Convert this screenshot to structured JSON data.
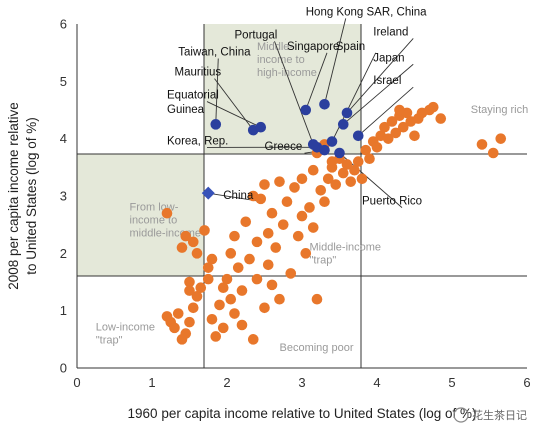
{
  "chart_data": {
    "type": "scatter",
    "xlabel": "1960 per capita income relative to United States (log of %)",
    "ylabel": "2008 per capita income relative to United States (log of %)",
    "xlim": [
      0,
      6
    ],
    "ylim": [
      0,
      6
    ],
    "x_ticks": [
      "0",
      "1",
      "2",
      "3",
      "4",
      "5",
      "6"
    ],
    "y_ticks": [
      "0",
      "1",
      "2",
      "3",
      "4",
      "5",
      "6"
    ],
    "grid": false,
    "thresholds": {
      "x": [
        1.65,
        3.75
      ],
      "y": [
        1.65,
        3.75
      ]
    },
    "zones": [
      {
        "text": [
          "Middle-",
          "income to",
          "high-income"
        ],
        "x": 2.4,
        "y": 5.55
      },
      {
        "text": [
          "From low-",
          "income to",
          "middle-income"
        ],
        "x": 0.7,
        "y": 2.75
      },
      {
        "text": [
          "Middle-income",
          "\"trap\""
        ],
        "x": 3.1,
        "y": 2.05
      },
      {
        "text": [
          "Staying rich"
        ],
        "x": 5.25,
        "y": 4.45
      },
      {
        "text": [
          "Low-income",
          "\"trap\""
        ],
        "x": 0.25,
        "y": 0.65
      },
      {
        "text": [
          "Becoming poor"
        ],
        "x": 2.7,
        "y": 0.3
      }
    ],
    "highlighted": [
      {
        "name": "Taiwan, China",
        "x": 1.85,
        "y": 4.25,
        "label_x": 1.35,
        "label_y": 5.45
      },
      {
        "name": "Mauritius",
        "x": 2.35,
        "y": 4.15,
        "label_x": 1.3,
        "label_y": 5.1
      },
      {
        "name": "Equatorial",
        "x": 2.45,
        "y": 4.2,
        "label_x": 1.2,
        "label_y": 4.7
      },
      {
        "name": "Guinea",
        "x": null,
        "y": null,
        "label_x": 1.2,
        "label_y": 4.45
      },
      {
        "name": "Korea, Rep.",
        "x": 3.2,
        "y": 3.85,
        "label_x": 1.2,
        "label_y": 3.9
      },
      {
        "name": "Portugal",
        "x": 3.15,
        "y": 3.9,
        "label_x": 2.1,
        "label_y": 5.75
      },
      {
        "name": "Singapore",
        "x": 3.05,
        "y": 4.5,
        "label_x": 2.8,
        "label_y": 5.55
      },
      {
        "name": "Hong Kong SAR, China",
        "x": 3.3,
        "y": 4.6,
        "label_x": 3.05,
        "label_y": 6.15
      },
      {
        "name": "Spain",
        "x": 3.4,
        "y": 3.95,
        "label_x": 3.45,
        "label_y": 5.55
      },
      {
        "name": "Ireland",
        "x": 3.6,
        "y": 4.45,
        "label_x": 3.95,
        "label_y": 5.8
      },
      {
        "name": "Japan",
        "x": 3.55,
        "y": 4.25,
        "label_x": 3.95,
        "label_y": 5.35
      },
      {
        "name": "Israel",
        "x": 3.75,
        "y": 4.05,
        "label_x": 3.95,
        "label_y": 4.95
      },
      {
        "name": "Greece",
        "x": 3.3,
        "y": 3.8,
        "label_x": 2.5,
        "label_y": 3.8
      },
      {
        "name": "Puerto Rico",
        "x": 3.5,
        "y": 3.75,
        "label_x": 3.8,
        "label_y": 2.85
      },
      {
        "name": "China",
        "x": 1.75,
        "y": 3.05,
        "label_x": 1.95,
        "label_y": 2.95
      }
    ],
    "others": [
      [
        1.2,
        2.7
      ],
      [
        1.2,
        0.9
      ],
      [
        1.25,
        0.8
      ],
      [
        1.3,
        0.7
      ],
      [
        1.35,
        0.95
      ],
      [
        1.4,
        0.5
      ],
      [
        1.45,
        0.6
      ],
      [
        1.5,
        0.8
      ],
      [
        1.55,
        1.05
      ],
      [
        1.6,
        1.25
      ],
      [
        1.5,
        1.5
      ],
      [
        1.65,
        1.4
      ],
      [
        1.4,
        2.1
      ],
      [
        1.45,
        2.3
      ],
      [
        1.5,
        1.35
      ],
      [
        1.55,
        2.2
      ],
      [
        1.6,
        2.0
      ],
      [
        1.7,
        2.4
      ],
      [
        1.75,
        1.75
      ],
      [
        1.75,
        1.55
      ],
      [
        1.8,
        1.9
      ],
      [
        1.8,
        0.85
      ],
      [
        1.85,
        0.55
      ],
      [
        1.9,
        1.1
      ],
      [
        1.95,
        1.4
      ],
      [
        1.95,
        0.7
      ],
      [
        2.0,
        1.55
      ],
      [
        2.05,
        2.0
      ],
      [
        2.05,
        1.2
      ],
      [
        2.1,
        0.95
      ],
      [
        2.1,
        2.3
      ],
      [
        2.15,
        1.75
      ],
      [
        2.2,
        1.35
      ],
      [
        2.2,
        0.75
      ],
      [
        2.25,
        2.55
      ],
      [
        2.3,
        1.9
      ],
      [
        2.35,
        3.0
      ],
      [
        2.35,
        0.5
      ],
      [
        2.4,
        2.2
      ],
      [
        2.4,
        1.55
      ],
      [
        2.45,
        2.95
      ],
      [
        2.5,
        3.2
      ],
      [
        2.5,
        1.05
      ],
      [
        2.55,
        2.35
      ],
      [
        2.55,
        1.8
      ],
      [
        2.6,
        1.45
      ],
      [
        2.6,
        2.7
      ],
      [
        2.65,
        2.1
      ],
      [
        2.7,
        3.25
      ],
      [
        2.7,
        1.2
      ],
      [
        2.75,
        2.5
      ],
      [
        2.8,
        2.9
      ],
      [
        2.85,
        1.65
      ],
      [
        2.9,
        3.15
      ],
      [
        2.95,
        2.3
      ],
      [
        3.0,
        2.65
      ],
      [
        3.0,
        3.3
      ],
      [
        3.05,
        2.0
      ],
      [
        3.1,
        2.8
      ],
      [
        3.15,
        3.45
      ],
      [
        3.15,
        2.45
      ],
      [
        3.2,
        1.2
      ],
      [
        3.25,
        3.1
      ],
      [
        3.3,
        2.9
      ],
      [
        3.35,
        3.3
      ],
      [
        3.4,
        3.5
      ],
      [
        3.45,
        3.2
      ],
      [
        3.5,
        3.65
      ],
      [
        3.55,
        3.4
      ],
      [
        3.6,
        3.55
      ],
      [
        3.65,
        3.25
      ],
      [
        3.7,
        3.45
      ],
      [
        3.75,
        3.6
      ],
      [
        3.8,
        3.3
      ],
      [
        3.85,
        3.8
      ],
      [
        3.9,
        3.65
      ],
      [
        3.95,
        3.95
      ],
      [
        4.0,
        3.85
      ],
      [
        4.05,
        4.05
      ],
      [
        4.1,
        4.2
      ],
      [
        4.15,
        4.0
      ],
      [
        4.2,
        4.3
      ],
      [
        4.25,
        4.1
      ],
      [
        4.3,
        4.4
      ],
      [
        4.35,
        4.2
      ],
      [
        4.4,
        4.45
      ],
      [
        4.45,
        4.3
      ],
      [
        4.5,
        4.05
      ],
      [
        4.55,
        4.35
      ],
      [
        4.7,
        4.5
      ],
      [
        4.75,
        4.55
      ],
      [
        4.85,
        4.35
      ],
      [
        4.3,
        4.5
      ],
      [
        4.6,
        4.45
      ],
      [
        5.4,
        3.9
      ],
      [
        5.55,
        3.75
      ],
      [
        5.65,
        4.0
      ],
      [
        3.2,
        3.75
      ],
      [
        3.3,
        3.9
      ],
      [
        3.4,
        3.6
      ]
    ],
    "colors": {
      "other_points": "#e8772b",
      "highlight_circle": "#2b3f9e",
      "highlight_diamond": "#3752b8",
      "zone_fill": "#e4e8d9",
      "threshold_line": "#333333"
    }
  },
  "watermark": "花生茶日记"
}
